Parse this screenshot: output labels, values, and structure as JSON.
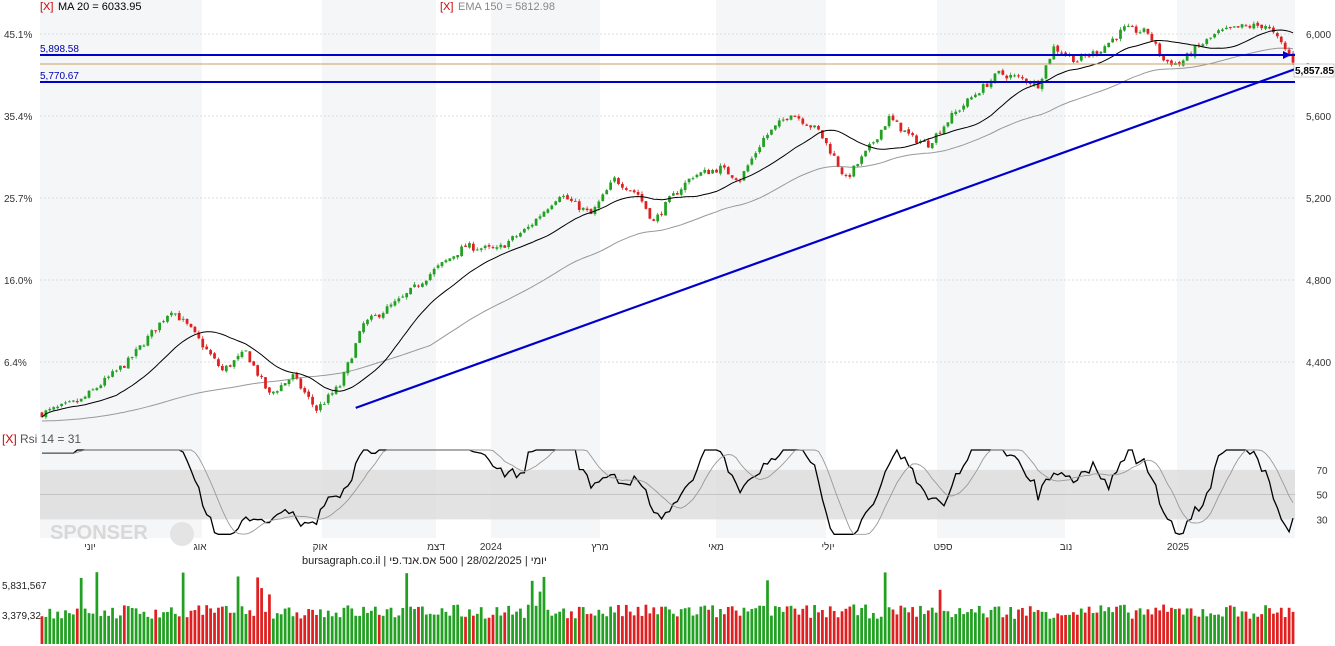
{
  "indicators": {
    "ma": {
      "marker": "[X]",
      "label": "MA 20 = 6033.95",
      "color": "#000000"
    },
    "ema": {
      "marker": "[X]",
      "label": "EMA 150 = 5812.98",
      "color": "#888888"
    },
    "rsi": {
      "marker": "[X]",
      "label": "Rsi 14 = 31"
    }
  },
  "levels": {
    "upper": "5,898.58",
    "lower": "5,770.67",
    "last": "5,857.85"
  },
  "footer": {
    "source": "יומי | 28/02/2025 | 500 אס.אנד.פי | bursagraph.co.il",
    "watermark": "SPONSER"
  },
  "volume_labels": [
    "5,831,567",
    "3,379,32"
  ],
  "colors": {
    "up": "#22a022",
    "down": "#e02020",
    "trend": "#0000cc",
    "ma": "#000000",
    "ema": "#999999",
    "last_line": "#c8a060",
    "band": "#dcdcdc"
  },
  "chart_data": {
    "type": "candlestick",
    "period": "daily",
    "date_range": [
      "2023-06",
      "2025-02-28"
    ],
    "price_axis": {
      "ticks": [
        "6,000",
        "5,600",
        "5,200",
        "4,800",
        "4,400"
      ],
      "values": [
        6000,
        5600,
        5200,
        4800,
        4400
      ],
      "range": [
        3900,
        6150
      ]
    },
    "percent_axis": {
      "ticks": [
        "45.1%",
        "35.4%",
        "25.7%",
        "16.0%",
        "6.4%"
      ]
    },
    "x_labels": [
      "יוני",
      "אוג",
      "אוק",
      "דצמ",
      "2024",
      "מרץ",
      "מאי",
      "יולי",
      "ספט",
      "נוב",
      "2025"
    ],
    "close_path": [
      [
        0,
        4000
      ],
      [
        10,
        4070
      ],
      [
        22,
        4280
      ],
      [
        33,
        4560
      ],
      [
        38,
        4450
      ],
      [
        46,
        4230
      ],
      [
        52,
        4330
      ],
      [
        58,
        4100
      ],
      [
        64,
        4200
      ],
      [
        70,
        4020
      ],
      [
        76,
        4150
      ],
      [
        82,
        4480
      ],
      [
        92,
        4620
      ],
      [
        100,
        4770
      ],
      [
        108,
        4900
      ],
      [
        116,
        4880
      ],
      [
        124,
        5000
      ],
      [
        132,
        5180
      ],
      [
        140,
        5070
      ],
      [
        146,
        5260
      ],
      [
        152,
        5180
      ],
      [
        156,
        5030
      ],
      [
        160,
        5150
      ],
      [
        166,
        5280
      ],
      [
        173,
        5320
      ],
      [
        178,
        5260
      ],
      [
        184,
        5480
      ],
      [
        191,
        5620
      ],
      [
        198,
        5520
      ],
      [
        202,
        5380
      ],
      [
        205,
        5260
      ],
      [
        210,
        5400
      ],
      [
        216,
        5590
      ],
      [
        222,
        5480
      ],
      [
        226,
        5450
      ],
      [
        232,
        5600
      ],
      [
        238,
        5720
      ],
      [
        244,
        5830
      ],
      [
        250,
        5800
      ],
      [
        254,
        5770
      ],
      [
        258,
        5970
      ],
      [
        264,
        5900
      ],
      [
        270,
        5960
      ],
      [
        276,
        6070
      ],
      [
        282,
        6050
      ],
      [
        286,
        5900
      ],
      [
        290,
        5880
      ],
      [
        294,
        5960
      ],
      [
        300,
        6050
      ],
      [
        306,
        6080
      ],
      [
        312,
        6090
      ],
      [
        316,
        5990
      ],
      [
        320,
        5870
      ]
    ],
    "ma_20": {
      "last": 6033.95
    },
    "ema_150": {
      "last": 5812.98
    },
    "horizontal_levels": [
      5898.58,
      5770.67
    ],
    "last_price": 5857.85,
    "trendline": {
      "from": [
        80,
        4030
      ],
      "to": [
        323,
        5880
      ]
    },
    "rsi": {
      "period": 14,
      "last": 31,
      "ticks": [
        70,
        50,
        30
      ],
      "band": [
        30,
        70
      ]
    },
    "volume": {
      "ticks": [
        "5,831,567",
        "3,379,32"
      ]
    }
  }
}
